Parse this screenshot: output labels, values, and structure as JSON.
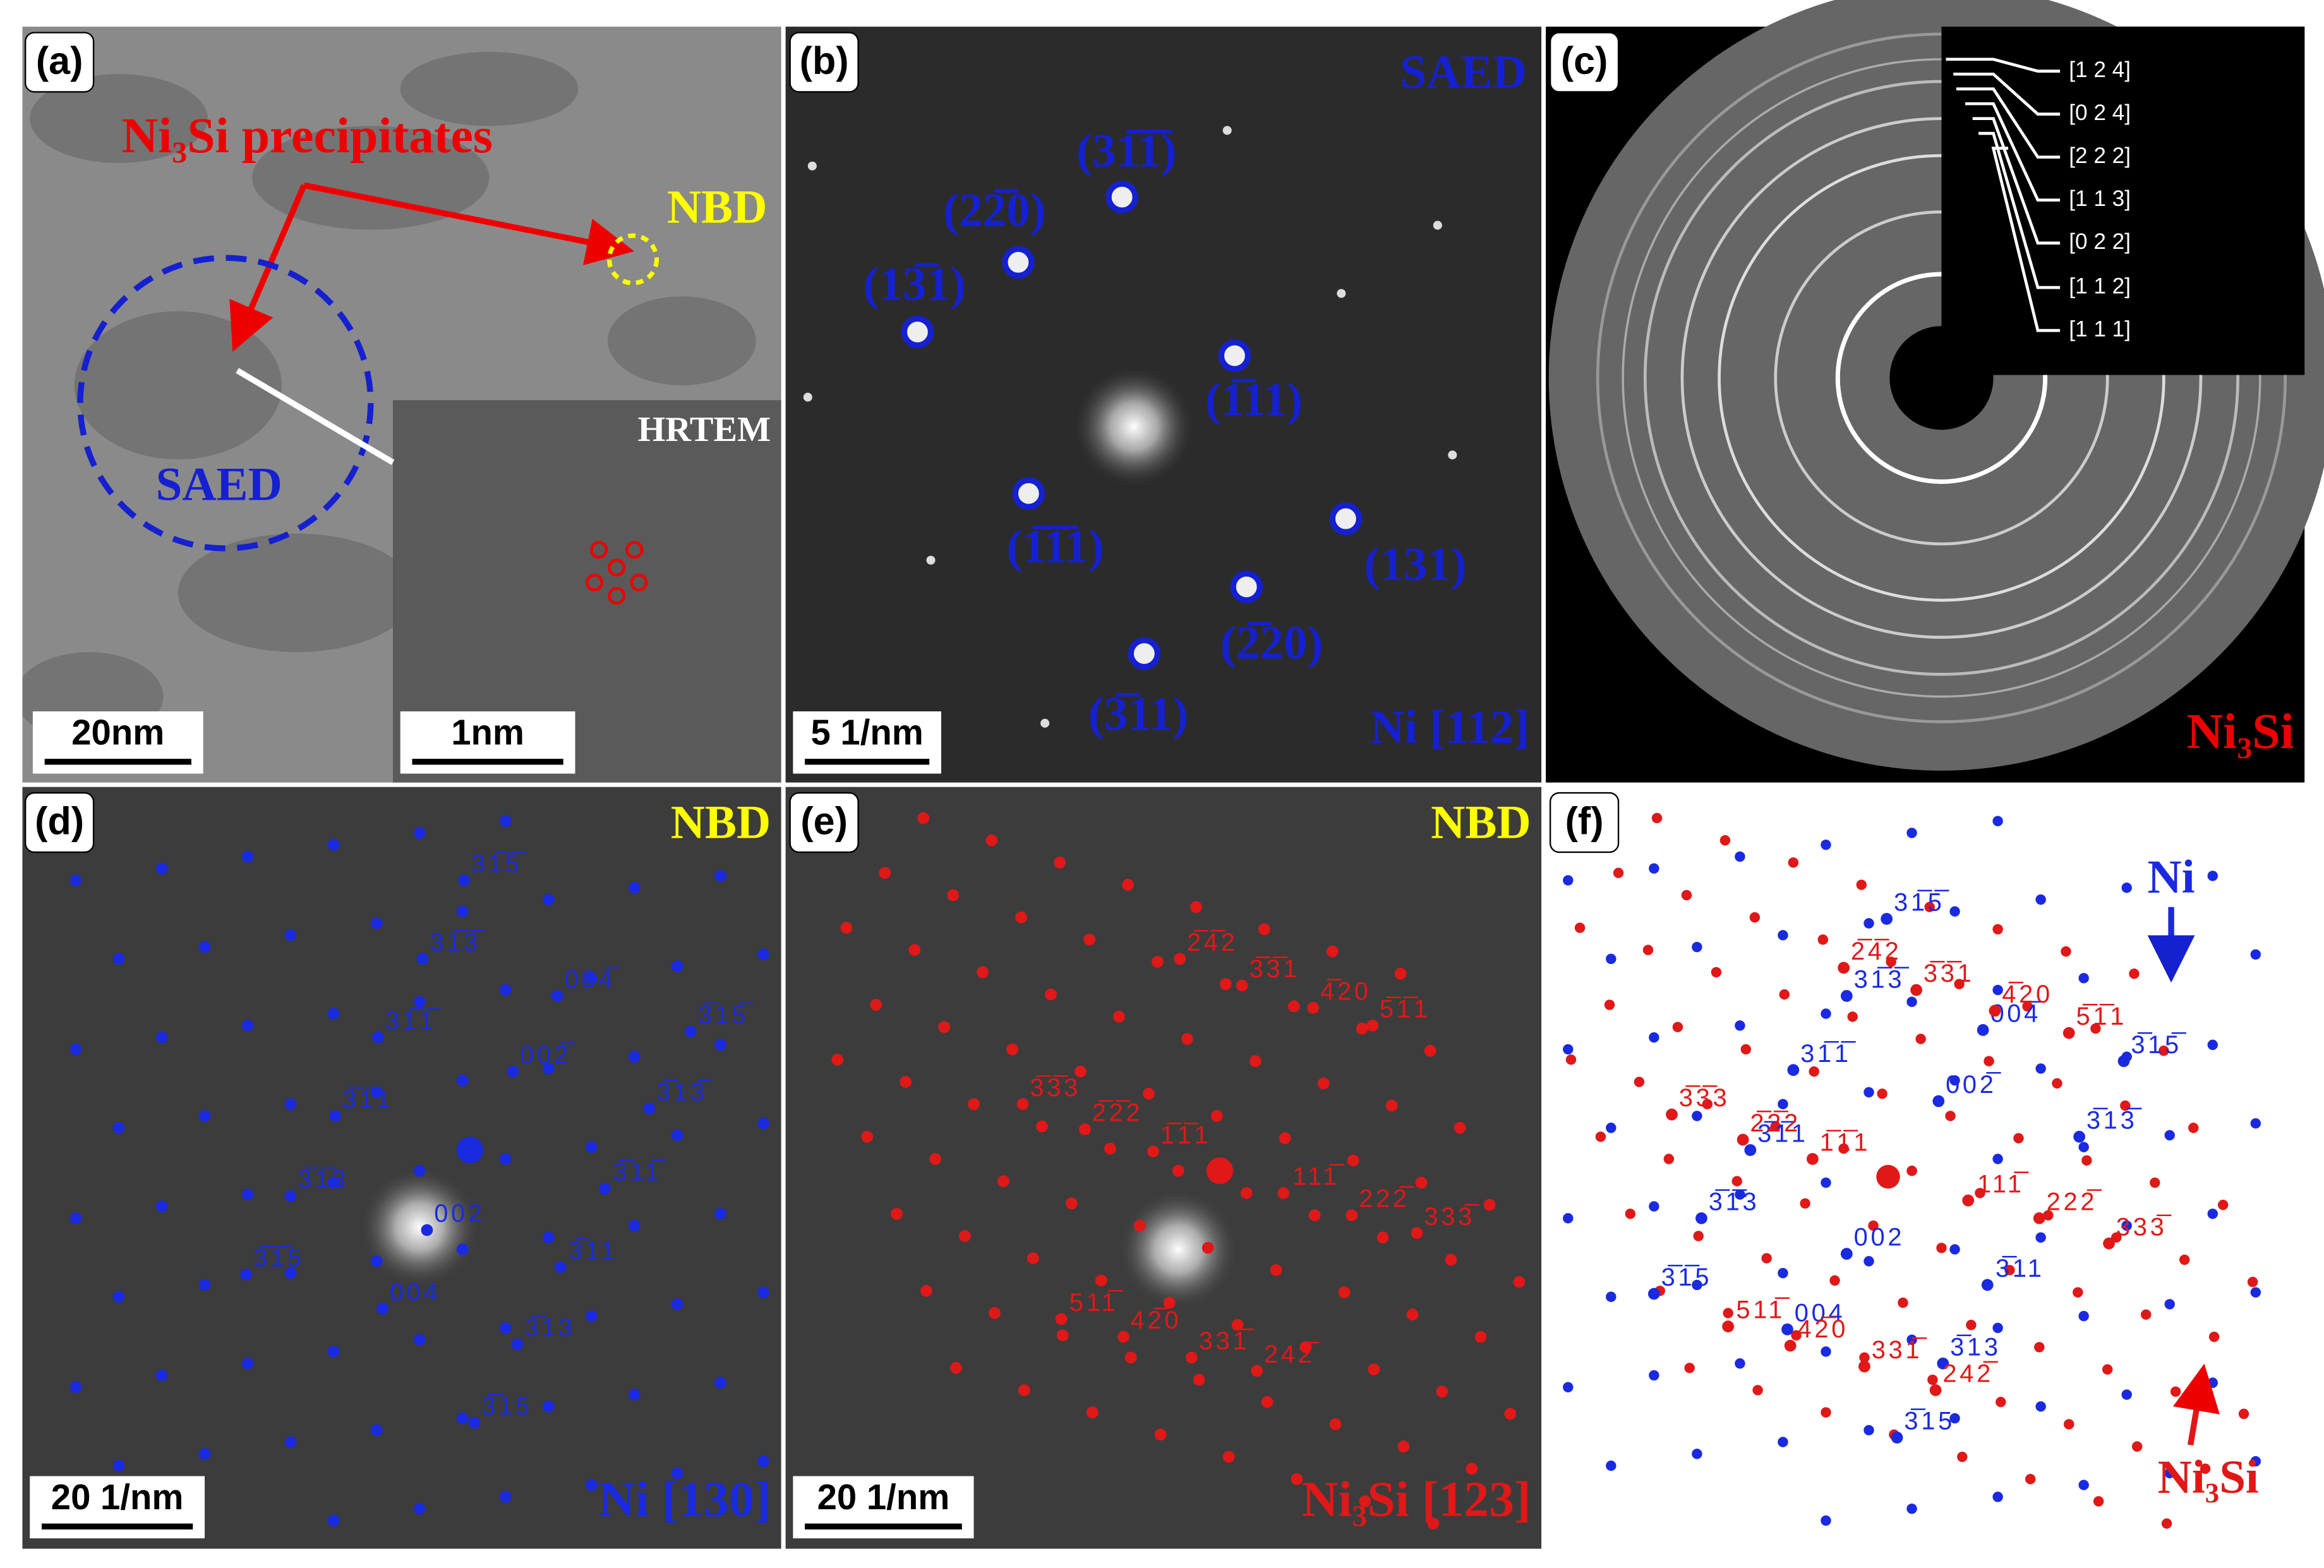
{
  "panel_a": {
    "label": "(a)",
    "precipitates": "Ni₃Si precipitates",
    "nbd": "NBD",
    "saed": "SAED",
    "hrtem": "HRTEM",
    "scale": "20nm",
    "inset_scale": "1nm"
  },
  "panel_b": {
    "label": "(b)",
    "title": "SAED",
    "zone": "Ni [112]",
    "scale": "5 1/nm",
    "spots": [
      "(31̅1̅)",
      "(22̅0)",
      "(13̅1)",
      "(1̅11)",
      "(1̅1̅1)",
      "(131)",
      "(2̅20)",
      "(3̅11)"
    ]
  },
  "panel_c": {
    "label": "(c)",
    "phase": "Ni₃Si",
    "rings": [
      "[1 2 4]",
      "[0 2 4]",
      "[2 2 2]",
      "[1 1 3]",
      "[0 2 2]",
      "[1 1 2]",
      "[1 1 1]"
    ]
  },
  "panel_d": {
    "label": "(d)",
    "title": "NBD",
    "zone": "Ni [130]",
    "scale": "20 1/nm",
    "spots": [
      "31̅5̅",
      "31̅3̅",
      "004̅",
      "3̅15̅",
      "31̅1̅",
      "002̅",
      "3̅13̅",
      "3̅1̅1",
      "3̅11̅",
      "3̅1̅3",
      "002",
      "3̅11",
      "3̅1̅5",
      "004",
      "3̅13",
      "3̅15"
    ]
  },
  "panel_e": {
    "label": "(e)",
    "title": "NBD",
    "zone": "Ni₃Si [123]",
    "scale": "20 1/nm",
    "spots": [
      "2̅4̅2",
      "3̅3̅1",
      "4̅20",
      "5̅1̅1",
      "3̅3̅3",
      "2̅2̅2",
      "1̅1̅1",
      "111̅",
      "222̅",
      "333̅",
      "511̅",
      "42̅0",
      "331̅",
      "242̅"
    ]
  },
  "panel_f": {
    "label": "(f)",
    "ni": "Ni",
    "ni3si": "Ni₃Si",
    "ni_spots": [
      "31̅5̅",
      "31̅3̅",
      "004̅",
      "3̅15̅",
      "31̅1̅",
      "002̅",
      "3̅13̅",
      "3̅1̅1",
      "3̅1̅3",
      "002",
      "3̅11",
      "3̅1̅5",
      "004",
      "3̅13",
      "3̅15"
    ],
    "ni3si_spots": [
      "2̅4̅2",
      "3̅3̅1",
      "4̅20",
      "5̅1̅1",
      "3̅3̅3",
      "2̅2̅2",
      "1̅1̅1",
      "111̅",
      "222̅",
      "333̅",
      "511̅",
      "42̅0",
      "331̅",
      "242̅"
    ]
  }
}
